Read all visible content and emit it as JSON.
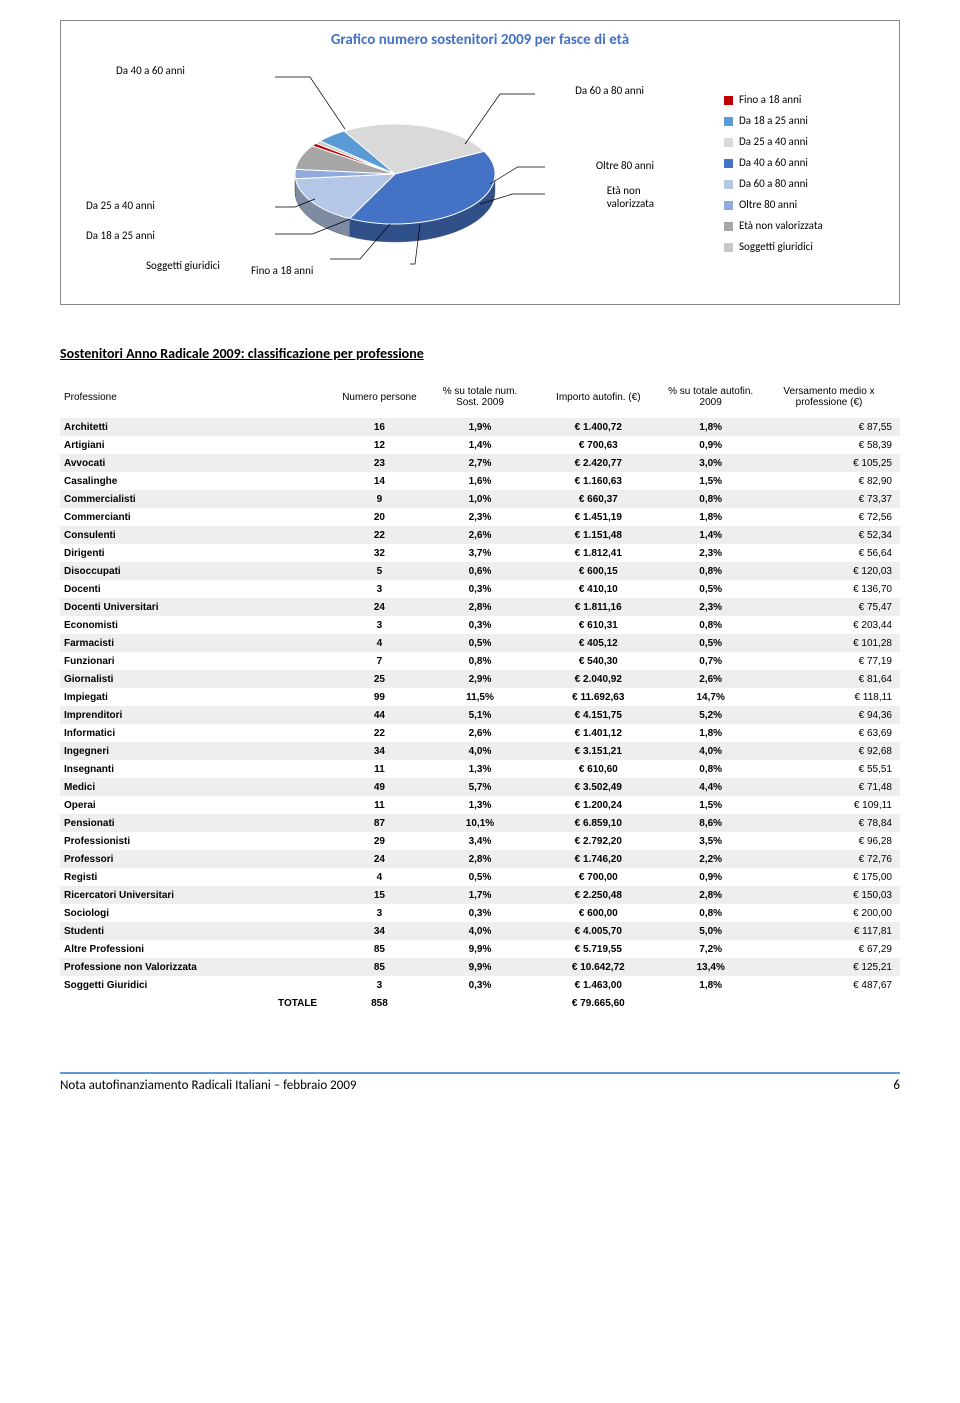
{
  "chart": {
    "title": "Grafico numero sostenitori 2009 per fasce di età",
    "colors": {
      "fino18": "#c00000",
      "da18a25": "#5b9bd5",
      "da25a40": "#d9d9d9",
      "da40a60": "#4472c4",
      "da60a80": "#b4c7e7",
      "oltre80": "#8faadc",
      "nonval": "#a6a6a6",
      "giuridici": "#c8c8c8"
    },
    "slices": [
      {
        "label": "Da 40 a 60 anni",
        "value": 40,
        "color": "#4472c4"
      },
      {
        "label": "Da 60 a 80 anni",
        "value": 16,
        "color": "#b4c7e7"
      },
      {
        "label": "Oltre 80 anni",
        "value": 3,
        "color": "#8faadc"
      },
      {
        "label": "Età non valorizzata",
        "value": 8,
        "color": "#a6a6a6"
      },
      {
        "label": "Fino a 18 anni",
        "value": 1,
        "color": "#c00000"
      },
      {
        "label": "Soggetti giuridici",
        "value": 1,
        "color": "#c8c8c8"
      },
      {
        "label": "Da 18 a 25 anni",
        "value": 5,
        "color": "#5b9bd5"
      },
      {
        "label": "Da 25 a 40 anni",
        "value": 26,
        "color": "#d9d9d9"
      }
    ],
    "legend": [
      {
        "label": "Fino a 18 anni",
        "color": "#c00000"
      },
      {
        "label": "Da 18 a 25 anni",
        "color": "#5b9bd5"
      },
      {
        "label": "Da 25 a 40 anni",
        "color": "#d9d9d9"
      },
      {
        "label": "Da 40 a 60 anni",
        "color": "#4472c4"
      },
      {
        "label": "Da 60 a 80 anni",
        "color": "#b4c7e7"
      },
      {
        "label": "Oltre 80 anni",
        "color": "#8faadc"
      },
      {
        "label": "Età non valorizzata",
        "color": "#a6a6a6"
      },
      {
        "label": "Soggetti giuridici",
        "color": "#c8c8c8"
      }
    ],
    "callouts": {
      "da40a60": "Da 40 a 60 anni",
      "da60a80": "Da 60 a 80 anni",
      "oltre80": "Oltre 80 anni",
      "nonval": "Età non\nvalorizzata",
      "fino18": "Fino a 18 anni",
      "giuridici": "Soggetti giuridici",
      "da18a25": "Da 18 a 25 anni",
      "da25a40": "Da 25 a 40 anni"
    }
  },
  "section_title": "Sostenitori Anno Radicale 2009: classificazione per professione",
  "table": {
    "headers": {
      "professione": "Professione",
      "numero": "Numero persone",
      "pct_sost": "% su totale num. Sost. 2009",
      "importo": "Importo autofin. (€)",
      "pct_autofin": "% su totale autofin. 2009",
      "versamento": "Versamento medio x professione (€)"
    },
    "rows": [
      {
        "n": "Architetti",
        "num": "16",
        "p1": "1,9%",
        "amt": "€ 1.400,72",
        "p2": "1,8%",
        "v": "€ 87,55"
      },
      {
        "n": "Artigiani",
        "num": "12",
        "p1": "1,4%",
        "amt": "€ 700,63",
        "p2": "0,9%",
        "v": "€ 58,39"
      },
      {
        "n": "Avvocati",
        "num": "23",
        "p1": "2,7%",
        "amt": "€ 2.420,77",
        "p2": "3,0%",
        "v": "€ 105,25"
      },
      {
        "n": "Casalinghe",
        "num": "14",
        "p1": "1,6%",
        "amt": "€ 1.160,63",
        "p2": "1,5%",
        "v": "€ 82,90"
      },
      {
        "n": "Commercialisti",
        "num": "9",
        "p1": "1,0%",
        "amt": "€ 660,37",
        "p2": "0,8%",
        "v": "€ 73,37"
      },
      {
        "n": "Commercianti",
        "num": "20",
        "p1": "2,3%",
        "amt": "€ 1.451,19",
        "p2": "1,8%",
        "v": "€ 72,56"
      },
      {
        "n": "Consulenti",
        "num": "22",
        "p1": "2,6%",
        "amt": "€ 1.151,48",
        "p2": "1,4%",
        "v": "€ 52,34"
      },
      {
        "n": "Dirigenti",
        "num": "32",
        "p1": "3,7%",
        "amt": "€ 1.812,41",
        "p2": "2,3%",
        "v": "€ 56,64"
      },
      {
        "n": "Disoccupati",
        "num": "5",
        "p1": "0,6%",
        "amt": "€ 600,15",
        "p2": "0,8%",
        "v": "€ 120,03"
      },
      {
        "n": "Docenti",
        "num": "3",
        "p1": "0,3%",
        "amt": "€ 410,10",
        "p2": "0,5%",
        "v": "€ 136,70"
      },
      {
        "n": "Docenti Universitari",
        "num": "24",
        "p1": "2,8%",
        "amt": "€ 1.811,16",
        "p2": "2,3%",
        "v": "€ 75,47"
      },
      {
        "n": "Economisti",
        "num": "3",
        "p1": "0,3%",
        "amt": "€ 610,31",
        "p2": "0,8%",
        "v": "€ 203,44"
      },
      {
        "n": "Farmacisti",
        "num": "4",
        "p1": "0,5%",
        "amt": "€ 405,12",
        "p2": "0,5%",
        "v": "€ 101,28"
      },
      {
        "n": "Funzionari",
        "num": "7",
        "p1": "0,8%",
        "amt": "€ 540,30",
        "p2": "0,7%",
        "v": "€ 77,19"
      },
      {
        "n": "Giornalisti",
        "num": "25",
        "p1": "2,9%",
        "amt": "€ 2.040,92",
        "p2": "2,6%",
        "v": "€ 81,64"
      },
      {
        "n": "Impiegati",
        "num": "99",
        "p1": "11,5%",
        "amt": "€ 11.692,63",
        "p2": "14,7%",
        "v": "€ 118,11"
      },
      {
        "n": "Imprenditori",
        "num": "44",
        "p1": "5,1%",
        "amt": "€ 4.151,75",
        "p2": "5,2%",
        "v": "€ 94,36"
      },
      {
        "n": "Informatici",
        "num": "22",
        "p1": "2,6%",
        "amt": "€ 1.401,12",
        "p2": "1,8%",
        "v": "€ 63,69"
      },
      {
        "n": "Ingegneri",
        "num": "34",
        "p1": "4,0%",
        "amt": "€ 3.151,21",
        "p2": "4,0%",
        "v": "€ 92,68"
      },
      {
        "n": "Insegnanti",
        "num": "11",
        "p1": "1,3%",
        "amt": "€ 610,60",
        "p2": "0,8%",
        "v": "€ 55,51"
      },
      {
        "n": "Medici",
        "num": "49",
        "p1": "5,7%",
        "amt": "€ 3.502,49",
        "p2": "4,4%",
        "v": "€ 71,48"
      },
      {
        "n": "Operai",
        "num": "11",
        "p1": "1,3%",
        "amt": "€ 1.200,24",
        "p2": "1,5%",
        "v": "€ 109,11"
      },
      {
        "n": "Pensionati",
        "num": "87",
        "p1": "10,1%",
        "amt": "€ 6.859,10",
        "p2": "8,6%",
        "v": "€ 78,84"
      },
      {
        "n": "Professionisti",
        "num": "29",
        "p1": "3,4%",
        "amt": "€ 2.792,20",
        "p2": "3,5%",
        "v": "€ 96,28"
      },
      {
        "n": "Professori",
        "num": "24",
        "p1": "2,8%",
        "amt": "€ 1.746,20",
        "p2": "2,2%",
        "v": "€ 72,76"
      },
      {
        "n": "Registi",
        "num": "4",
        "p1": "0,5%",
        "amt": "€ 700,00",
        "p2": "0,9%",
        "v": "€ 175,00"
      },
      {
        "n": "Ricercatori Universitari",
        "num": "15",
        "p1": "1,7%",
        "amt": "€ 2.250,48",
        "p2": "2,8%",
        "v": "€ 150,03"
      },
      {
        "n": "Sociologi",
        "num": "3",
        "p1": "0,3%",
        "amt": "€ 600,00",
        "p2": "0,8%",
        "v": "€ 200,00"
      },
      {
        "n": "Studenti",
        "num": "34",
        "p1": "4,0%",
        "amt": "€ 4.005,70",
        "p2": "5,0%",
        "v": "€ 117,81"
      },
      {
        "n": "Altre Professioni",
        "num": "85",
        "p1": "9,9%",
        "amt": "€ 5.719,55",
        "p2": "7,2%",
        "v": "€ 67,29"
      },
      {
        "n": "Professione non Valorizzata",
        "num": "85",
        "p1": "9,9%",
        "amt": "€ 10.642,72",
        "p2": "13,4%",
        "v": "€ 125,21"
      },
      {
        "n": "Soggetti Giuridici",
        "num": "3",
        "p1": "0,3%",
        "amt": "€ 1.463,00",
        "p2": "1,8%",
        "v": "€ 487,67"
      }
    ],
    "total": {
      "label": "TOTALE",
      "num": "858",
      "amt": "€ 79.665,60"
    }
  },
  "footer": {
    "text": "Nota autofinanziamento Radicali Italiani – febbraio 2009",
    "page": "6"
  }
}
